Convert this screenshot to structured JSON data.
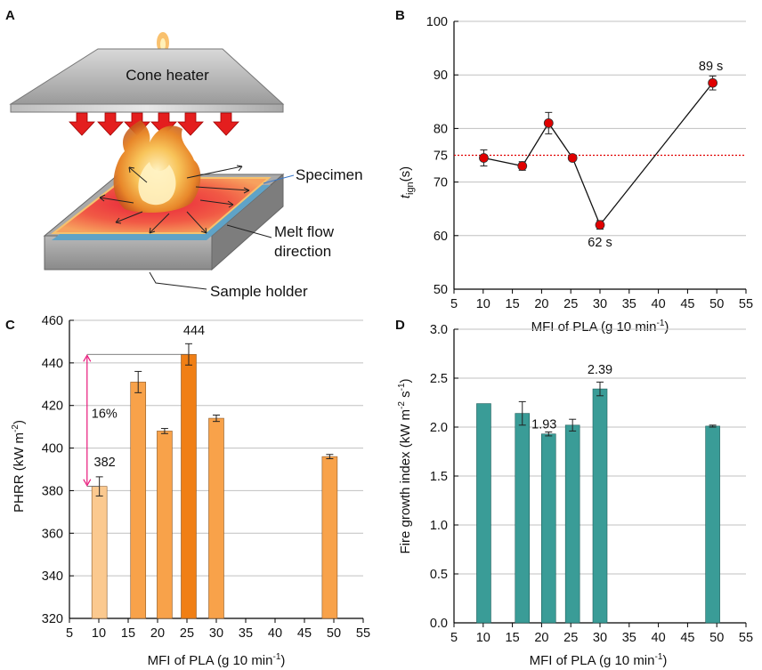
{
  "panels": {
    "a": {
      "letter": "A",
      "labels": {
        "heater": "Cone heater",
        "specimen": "Specimen",
        "melt_flow": [
          "Melt flow",
          "direction"
        ],
        "holder": "Sample holder"
      }
    },
    "b": {
      "letter": "B",
      "ylabel_main": "t",
      "ylabel_sub": "ign",
      "ylabel_unit": "(s)",
      "xlabel": "MFI of PLA (g 10 min",
      "xlabel_sup": "-1",
      "xlabel_end": ")"
    },
    "c": {
      "letter": "C",
      "ylabel": "PHRR (kW m",
      "ylabel_sup": "-2",
      "ylabel_end": ")",
      "xlabel": "MFI of PLA (g 10 min",
      "xlabel_sup": "-1",
      "xlabel_end": ")",
      "diff_label": "16%"
    },
    "d": {
      "letter": "D",
      "ylabel": "Fire growth index (kW m",
      "ylabel_sup1": "-2",
      "ylabel_mid": " s",
      "ylabel_sup2": "-1",
      "ylabel_end": ")",
      "xlabel": "MFI of PLA (g 10 min",
      "xlabel_sup": "-1",
      "xlabel_end": ")"
    }
  },
  "colors": {
    "marker": "#e00000",
    "refline": "#e00000",
    "bar_light": "#fbc98f",
    "bar_mid": "#f8a24a",
    "bar_dark": "#f07f15",
    "teal": "#3a9c97",
    "pink": "#e8177a",
    "grid": "#c0c0c0"
  },
  "chart_data": [
    {
      "panel": "B",
      "type": "line",
      "x": [
        10.1,
        16.7,
        21.2,
        25.3,
        30.0,
        49.3
      ],
      "y": [
        74.5,
        73.0,
        81.0,
        74.5,
        62.0,
        88.5
      ],
      "yerr": [
        1.5,
        0.8,
        2.0,
        0,
        0.8,
        1.3
      ],
      "xlim": [
        5,
        55
      ],
      "ylim": [
        50,
        100
      ],
      "xticks": [
        5,
        10,
        15,
        20,
        25,
        30,
        35,
        40,
        45,
        50,
        55
      ],
      "yticks": [
        50,
        60,
        70,
        80,
        90,
        100
      ],
      "reference_line": {
        "y": 75,
        "label": "75"
      },
      "annotations": [
        {
          "x": 49.3,
          "y": 88.5,
          "text": "89 s"
        },
        {
          "x": 30.0,
          "y": 62.0,
          "text": "62 s"
        }
      ],
      "grid": true
    },
    {
      "panel": "C",
      "type": "bar",
      "x": [
        10.1,
        16.7,
        21.2,
        25.3,
        30.0,
        49.3
      ],
      "values": [
        382,
        431,
        408,
        444,
        414,
        396
      ],
      "yerr": [
        4.5,
        5,
        1.2,
        5,
        1.5,
        1.0
      ],
      "shade": [
        "light",
        "mid",
        "mid",
        "dark",
        "mid",
        "mid"
      ],
      "xlim": [
        5,
        55
      ],
      "ylim": [
        320,
        460
      ],
      "xticks": [
        5,
        10,
        15,
        20,
        25,
        30,
        35,
        40,
        45,
        50,
        55
      ],
      "yticks": [
        320,
        340,
        360,
        380,
        400,
        420,
        440,
        460
      ],
      "annotations": [
        {
          "x": 10.1,
          "y": 382,
          "text": "382"
        },
        {
          "x": 25.3,
          "y": 444,
          "text": "444"
        }
      ],
      "grid": true
    },
    {
      "panel": "D",
      "type": "bar",
      "x": [
        10.1,
        16.7,
        21.2,
        25.3,
        30.0,
        49.3
      ],
      "values": [
        2.24,
        2.14,
        1.93,
        2.02,
        2.39,
        2.01
      ],
      "yerr": [
        0,
        0.12,
        0.02,
        0.06,
        0.07,
        0.01
      ],
      "xlim": [
        5,
        55
      ],
      "ylim": [
        0.0,
        3.0
      ],
      "xticks": [
        5,
        10,
        15,
        20,
        25,
        30,
        35,
        40,
        45,
        50,
        55
      ],
      "yticks": [
        "0.0",
        "0.5",
        "1.0",
        "1.5",
        "2.0",
        "2.5",
        "3.0"
      ],
      "annotations": [
        {
          "x": 21.2,
          "y": 1.93,
          "text": "1.93"
        },
        {
          "x": 30.0,
          "y": 2.39,
          "text": "2.39"
        }
      ],
      "grid": true
    }
  ]
}
